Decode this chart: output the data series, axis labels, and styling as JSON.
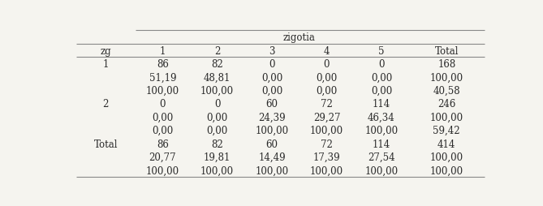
{
  "title": "zigotia",
  "col_headers": [
    "zg",
    "1",
    "2",
    "3",
    "4",
    "5",
    "Total"
  ],
  "rows": [
    {
      "label": "1",
      "sub_rows": [
        [
          "1",
          "86",
          "82",
          "0",
          "0",
          "0",
          "168"
        ],
        [
          "",
          "51,19",
          "48,81",
          "0,00",
          "0,00",
          "0,00",
          "100,00"
        ],
        [
          "",
          "100,00",
          "100,00",
          "0,00",
          "0,00",
          "0,00",
          "40,58"
        ]
      ]
    },
    {
      "label": "2",
      "sub_rows": [
        [
          "2",
          "0",
          "0",
          "60",
          "72",
          "114",
          "246"
        ],
        [
          "",
          "0,00",
          "0,00",
          "24,39",
          "29,27",
          "46,34",
          "100,00"
        ],
        [
          "",
          "0,00",
          "0,00",
          "100,00",
          "100,00",
          "100,00",
          "59,42"
        ]
      ]
    },
    {
      "label": "Total",
      "sub_rows": [
        [
          "Total",
          "86",
          "82",
          "60",
          "72",
          "114",
          "414"
        ],
        [
          "",
          "20,77",
          "19,81",
          "14,49",
          "17,39",
          "27,54",
          "100,00"
        ],
        [
          "",
          "100,00",
          "100,00",
          "100,00",
          "100,00",
          "100,00",
          "100,00"
        ]
      ]
    }
  ],
  "line_color": "#888888",
  "background_color": "#f5f4ef",
  "text_color": "#2a2a2a",
  "font_size": 8.5
}
